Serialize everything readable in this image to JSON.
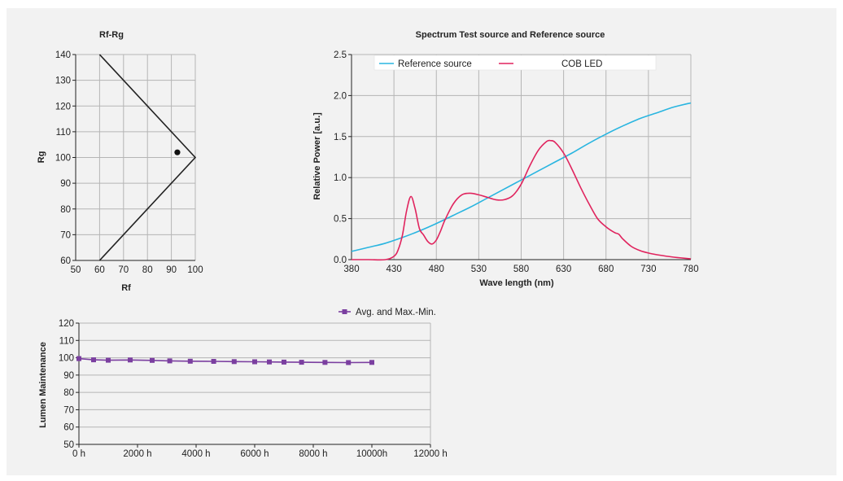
{
  "colors": {
    "reference": "#29b5e0",
    "led": "#e0245e",
    "lumen": "#7b3fa0",
    "grid": "#b5b5b5",
    "frame": "#222222",
    "legend_bg": "#ffffff"
  },
  "chart_data": [
    {
      "type": "line",
      "title": "Rf-Rg",
      "xlabel": "Rf",
      "ylabel": "Rg",
      "xlim": [
        50,
        100
      ],
      "ylim": [
        60,
        140
      ],
      "x_ticks": [
        "50",
        "60",
        "70",
        "80",
        "90",
        "100"
      ],
      "y_ticks": [
        "60",
        "70",
        "80",
        "90",
        "100",
        "110",
        "120",
        "130",
        "140"
      ],
      "boundary": [
        [
          60,
          140
        ],
        [
          100,
          100
        ],
        [
          60,
          60
        ]
      ],
      "point": {
        "rf": 92.5,
        "rg": 102
      },
      "grid": true
    },
    {
      "type": "line",
      "title": "Spectrum Test source and Reference source",
      "xlabel": "Wave length (nm)",
      "ylabel": "Relative Power [a.u.]",
      "xlim": [
        380,
        780
      ],
      "ylim": [
        0,
        2.5
      ],
      "x_ticks": [
        "380",
        "430",
        "480",
        "530",
        "580",
        "630",
        "680",
        "730",
        "780"
      ],
      "y_ticks": [
        "0.0",
        "0.5",
        "1.0",
        "1.5",
        "2.0",
        "2.5"
      ],
      "legend": "top",
      "grid": true,
      "series": [
        {
          "name": "Reference source",
          "x": [
            380,
            400,
            420,
            440,
            460,
            480,
            500,
            520,
            540,
            560,
            580,
            600,
            620,
            640,
            660,
            680,
            700,
            720,
            740,
            760,
            780
          ],
          "y": [
            0.1,
            0.15,
            0.2,
            0.27,
            0.35,
            0.44,
            0.54,
            0.64,
            0.75,
            0.86,
            0.97,
            1.08,
            1.19,
            1.3,
            1.42,
            1.53,
            1.63,
            1.72,
            1.79,
            1.86,
            1.91
          ]
        },
        {
          "name": "COB LED",
          "x": [
            380,
            400,
            420,
            430,
            435,
            440,
            445,
            450,
            455,
            460,
            465,
            470,
            475,
            480,
            485,
            490,
            500,
            510,
            520,
            530,
            540,
            550,
            560,
            570,
            580,
            590,
            600,
            610,
            615,
            620,
            630,
            640,
            650,
            660,
            670,
            680,
            690,
            695,
            700,
            710,
            720,
            730,
            740,
            760,
            780
          ],
          "y": [
            0.0,
            0.0,
            0.0,
            0.04,
            0.12,
            0.3,
            0.6,
            0.77,
            0.62,
            0.38,
            0.3,
            0.22,
            0.19,
            0.24,
            0.35,
            0.48,
            0.68,
            0.79,
            0.81,
            0.79,
            0.76,
            0.73,
            0.73,
            0.78,
            0.92,
            1.14,
            1.33,
            1.44,
            1.45,
            1.43,
            1.3,
            1.1,
            0.88,
            0.68,
            0.5,
            0.4,
            0.33,
            0.31,
            0.25,
            0.16,
            0.11,
            0.08,
            0.06,
            0.03,
            0.01
          ]
        }
      ]
    },
    {
      "type": "line",
      "title": "",
      "xlabel": "",
      "ylabel": "Lumen Maintenance",
      "xlim": [
        0,
        12000
      ],
      "ylim": [
        50,
        120
      ],
      "x_ticks": [
        "0 h",
        "2000 h",
        "4000 h",
        "6000 h",
        "8000 h",
        "10000h",
        "12000 h"
      ],
      "y_ticks": [
        "50",
        "60",
        "70",
        "80",
        "90",
        "100",
        "110",
        "120"
      ],
      "legend": "top",
      "grid": true,
      "series": [
        {
          "name": "Avg. and Max.-Min.",
          "x": [
            0,
            500,
            1000,
            1750,
            2500,
            3100,
            3800,
            4600,
            5300,
            6000,
            6500,
            7000,
            7600,
            8400,
            9200,
            10000
          ],
          "y": [
            99.5,
            98.8,
            98.6,
            98.7,
            98.5,
            98.2,
            98.0,
            97.9,
            97.8,
            97.7,
            97.6,
            97.5,
            97.4,
            97.3,
            97.2,
            97.3
          ]
        }
      ]
    }
  ]
}
